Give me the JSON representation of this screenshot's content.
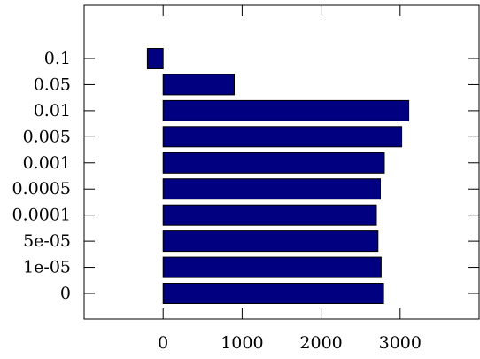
{
  "chart_data": {
    "type": "bar",
    "orientation": "horizontal",
    "title": "",
    "xlabel": "",
    "ylabel": "",
    "categories": [
      "0",
      "1e-05",
      "5e-05",
      "0.0001",
      "0.0005",
      "0.001",
      "0.005",
      "0.01",
      "0.05",
      "0.1"
    ],
    "values": [
      2790,
      2760,
      2720,
      2700,
      2750,
      2800,
      3020,
      3110,
      900,
      -200
    ],
    "xlim": [
      -1000,
      4000
    ],
    "xticks": [
      0,
      1000,
      2000,
      3000
    ],
    "xtick_labels": [
      "0",
      "1000",
      "2000",
      "3000"
    ],
    "grid": false,
    "bar_color": "#000080"
  }
}
